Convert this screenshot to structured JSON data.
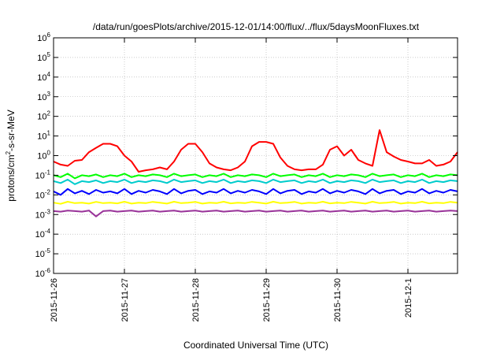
{
  "chart_data": {
    "type": "line",
    "title": "/data/run/goesPlots/archive/2015-12-01/14:00/flux/../flux/5daysMoonFluxes.txt",
    "xlabel": "Coordinated Universal Time (UTC)",
    "ylabel": {
      "base": "protons/cm",
      "exp": "2",
      "rest": "-s-sr-MeV"
    },
    "yscale": "log",
    "ylim": [
      1e-06,
      1000000.0
    ],
    "yticks": [
      {
        "base": "10",
        "exp": "-6",
        "value": 1e-06
      },
      {
        "base": "10",
        "exp": "-5",
        "value": 1e-05
      },
      {
        "base": "10",
        "exp": "-4",
        "value": 0.0001
      },
      {
        "base": "10",
        "exp": "-3",
        "value": 0.001
      },
      {
        "base": "10",
        "exp": "-2",
        "value": 0.01
      },
      {
        "base": "10",
        "exp": "-1",
        "value": 0.1
      },
      {
        "base": "10",
        "exp": "0",
        "value": 1
      },
      {
        "base": "10",
        "exp": "1",
        "value": 10
      },
      {
        "base": "10",
        "exp": "2",
        "value": 100
      },
      {
        "base": "10",
        "exp": "3",
        "value": 1000
      },
      {
        "base": "10",
        "exp": "4",
        "value": 10000
      },
      {
        "base": "10",
        "exp": "5",
        "value": 100000
      },
      {
        "base": "10",
        "exp": "6",
        "value": 1000000
      }
    ],
    "xlim": [
      0,
      5.7
    ],
    "xticks": [
      {
        "label": "2015-11-26",
        "value": 0
      },
      {
        "label": "2015-11-27",
        "value": 1
      },
      {
        "label": "2015-11-28",
        "value": 2
      },
      {
        "label": "2015-11-29",
        "value": 3
      },
      {
        "label": "2015-11-30",
        "value": 4
      },
      {
        "label": "2015-12-1",
        "value": 5
      }
    ],
    "grid": true,
    "x": [
      0,
      0.1,
      0.2,
      0.3,
      0.4,
      0.5,
      0.6,
      0.7,
      0.8,
      0.9,
      1.0,
      1.1,
      1.2,
      1.3,
      1.4,
      1.5,
      1.6,
      1.7,
      1.8,
      1.9,
      2.0,
      2.1,
      2.2,
      2.3,
      2.4,
      2.5,
      2.6,
      2.7,
      2.8,
      2.9,
      3.0,
      3.1,
      3.2,
      3.3,
      3.4,
      3.5,
      3.6,
      3.7,
      3.8,
      3.9,
      4.0,
      4.1,
      4.2,
      4.3,
      4.4,
      4.5,
      4.6,
      4.7,
      4.8,
      4.9,
      5.0,
      5.1,
      5.2,
      5.3,
      5.4,
      5.5,
      5.6,
      5.7
    ],
    "series": [
      {
        "color": "#ff0000",
        "values": [
          0.5,
          0.35,
          0.3,
          0.55,
          0.6,
          1.5,
          2.5,
          4,
          4,
          3,
          1,
          0.5,
          0.15,
          0.18,
          0.2,
          0.25,
          0.2,
          0.5,
          2,
          4,
          4,
          1.5,
          0.4,
          0.25,
          0.2,
          0.18,
          0.25,
          0.5,
          3,
          5,
          5,
          4,
          0.8,
          0.3,
          0.2,
          0.18,
          0.2,
          0.2,
          0.35,
          2,
          3,
          1,
          2,
          0.6,
          0.4,
          0.3,
          20,
          1.5,
          0.9,
          0.6,
          0.5,
          0.4,
          0.4,
          0.6,
          0.3,
          0.35,
          0.5,
          1.5
        ]
      },
      {
        "color": "#00ff00",
        "values": [
          0.1,
          0.08,
          0.12,
          0.07,
          0.1,
          0.09,
          0.11,
          0.08,
          0.1,
          0.09,
          0.12,
          0.08,
          0.1,
          0.09,
          0.11,
          0.1,
          0.08,
          0.12,
          0.09,
          0.1,
          0.11,
          0.08,
          0.1,
          0.09,
          0.12,
          0.08,
          0.1,
          0.09,
          0.11,
          0.1,
          0.08,
          0.12,
          0.09,
          0.1,
          0.11,
          0.08,
          0.1,
          0.09,
          0.12,
          0.08,
          0.1,
          0.09,
          0.11,
          0.1,
          0.08,
          0.12,
          0.09,
          0.1,
          0.11,
          0.08,
          0.1,
          0.09,
          0.12,
          0.08,
          0.1,
          0.09,
          0.11,
          0.1
        ]
      },
      {
        "color": "#00cccc",
        "values": [
          0.05,
          0.04,
          0.06,
          0.035,
          0.05,
          0.045,
          0.055,
          0.04,
          0.05,
          0.045,
          0.06,
          0.04,
          0.05,
          0.045,
          0.055,
          0.05,
          0.04,
          0.06,
          0.045,
          0.05,
          0.055,
          0.04,
          0.05,
          0.045,
          0.06,
          0.04,
          0.05,
          0.045,
          0.055,
          0.05,
          0.04,
          0.06,
          0.045,
          0.05,
          0.055,
          0.04,
          0.05,
          0.045,
          0.06,
          0.04,
          0.05,
          0.045,
          0.055,
          0.05,
          0.04,
          0.06,
          0.045,
          0.05,
          0.055,
          0.04,
          0.05,
          0.045,
          0.06,
          0.04,
          0.05,
          0.045,
          0.055,
          0.05
        ]
      },
      {
        "color": "#0000ff",
        "values": [
          0.015,
          0.01,
          0.02,
          0.012,
          0.016,
          0.011,
          0.018,
          0.013,
          0.015,
          0.012,
          0.02,
          0.011,
          0.016,
          0.013,
          0.018,
          0.015,
          0.011,
          0.02,
          0.012,
          0.016,
          0.018,
          0.011,
          0.015,
          0.013,
          0.02,
          0.012,
          0.016,
          0.013,
          0.018,
          0.015,
          0.011,
          0.02,
          0.012,
          0.016,
          0.018,
          0.011,
          0.015,
          0.013,
          0.02,
          0.012,
          0.016,
          0.013,
          0.018,
          0.015,
          0.011,
          0.02,
          0.012,
          0.016,
          0.018,
          0.011,
          0.015,
          0.013,
          0.02,
          0.012,
          0.016,
          0.013,
          0.018,
          0.015
        ]
      },
      {
        "color": "#ffff00",
        "values": [
          0.004,
          0.0035,
          0.0045,
          0.0038,
          0.004,
          0.0036,
          0.0044,
          0.0038,
          0.004,
          0.0037,
          0.0045,
          0.0036,
          0.004,
          0.0038,
          0.0044,
          0.004,
          0.0036,
          0.0045,
          0.0038,
          0.004,
          0.0044,
          0.0036,
          0.004,
          0.0038,
          0.0045,
          0.0037,
          0.004,
          0.0038,
          0.0044,
          0.004,
          0.0036,
          0.0045,
          0.0038,
          0.004,
          0.0044,
          0.0036,
          0.004,
          0.0038,
          0.0045,
          0.0037,
          0.004,
          0.0038,
          0.0044,
          0.004,
          0.0036,
          0.0045,
          0.0038,
          0.004,
          0.0044,
          0.0036,
          0.004,
          0.0038,
          0.0045,
          0.0037,
          0.004,
          0.0038,
          0.0044,
          0.004
        ]
      },
      {
        "color": "#993399",
        "values": [
          0.0015,
          0.0014,
          0.0016,
          0.0015,
          0.0014,
          0.0016,
          0.0008,
          0.0015,
          0.0016,
          0.0014,
          0.0015,
          0.0016,
          0.0014,
          0.0015,
          0.0016,
          0.0014,
          0.0015,
          0.0016,
          0.0014,
          0.0015,
          0.0016,
          0.0014,
          0.0015,
          0.0016,
          0.0014,
          0.0015,
          0.0016,
          0.0014,
          0.0015,
          0.0016,
          0.0014,
          0.0015,
          0.0016,
          0.0014,
          0.0015,
          0.0016,
          0.0014,
          0.0015,
          0.0016,
          0.0014,
          0.0015,
          0.0016,
          0.0014,
          0.0015,
          0.0016,
          0.0014,
          0.0015,
          0.0016,
          0.0014,
          0.0015,
          0.0016,
          0.0014,
          0.0015,
          0.0016,
          0.0014,
          0.0015,
          0.0016,
          0.0015
        ]
      }
    ]
  }
}
